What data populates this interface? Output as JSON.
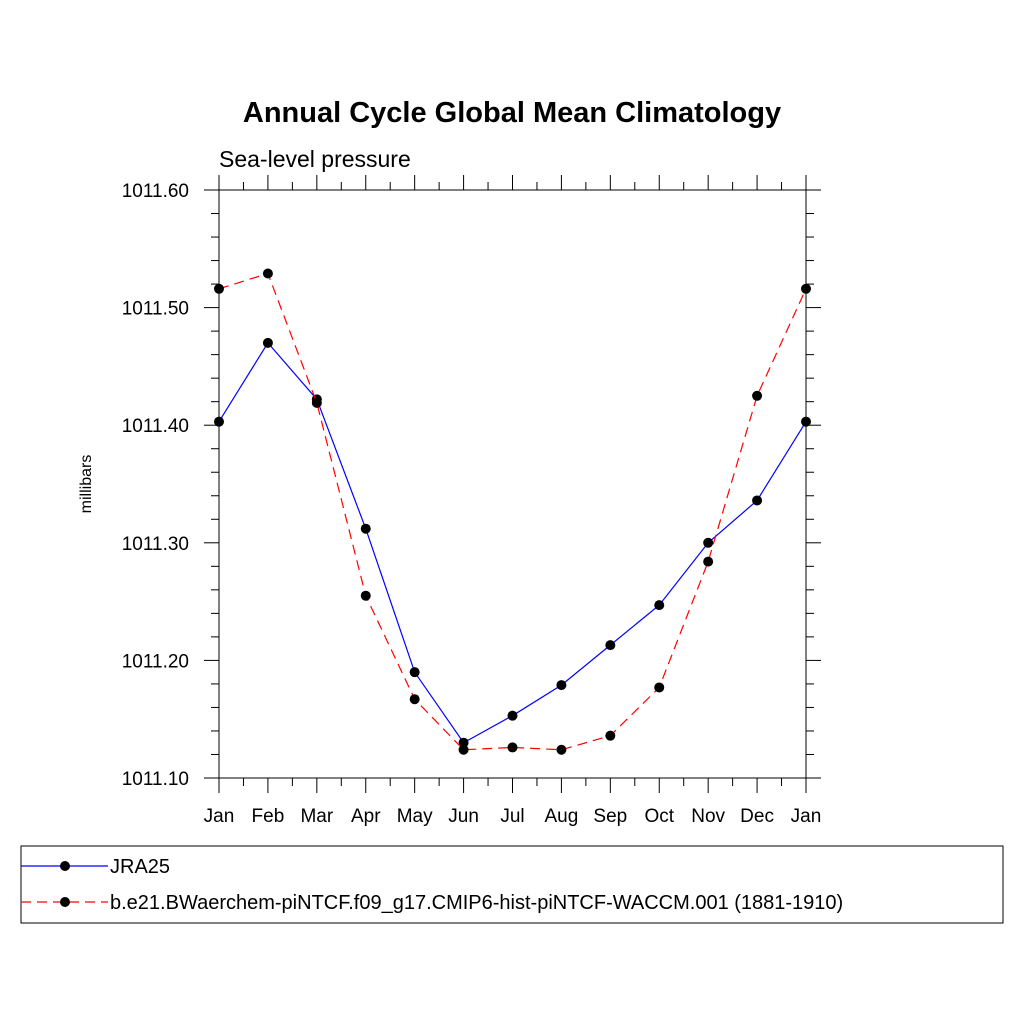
{
  "chart_data": {
    "type": "line",
    "title": "Annual Cycle Global Mean Climatology",
    "subtitle": "Sea-level pressure",
    "xlabel": "",
    "ylabel": "millibars",
    "categories": [
      "Jan",
      "Feb",
      "Mar",
      "Apr",
      "May",
      "Jun",
      "Jul",
      "Aug",
      "Sep",
      "Oct",
      "Nov",
      "Dec",
      "Jan"
    ],
    "ylim": [
      1011.1,
      1011.6
    ],
    "yticks": [
      1011.1,
      1011.2,
      1011.3,
      1011.4,
      1011.5,
      1011.6
    ],
    "ytick_labels": [
      "1011.10",
      "1011.20",
      "1011.30",
      "1011.40",
      "1011.50",
      "1011.60"
    ],
    "grid": false,
    "legend_position": "bottom",
    "series": [
      {
        "name": "JRA25",
        "color": "#0000ff",
        "dash": "solid",
        "values": [
          1011.403,
          1011.47,
          1011.422,
          1011.312,
          1011.19,
          1011.13,
          1011.153,
          1011.179,
          1011.213,
          1011.247,
          1011.3,
          1011.336,
          1011.403
        ]
      },
      {
        "name": "b.e21.BWaerchem-piNTCF.f09_g17.CMIP6-hist-piNTCF-WACCM.001 (1881-1910)",
        "color": "#ff0000",
        "dash": "dashed",
        "values": [
          1011.516,
          1011.529,
          1011.419,
          1011.255,
          1011.167,
          1011.124,
          1011.126,
          1011.124,
          1011.136,
          1011.177,
          1011.284,
          1011.425,
          1011.516
        ]
      }
    ]
  }
}
